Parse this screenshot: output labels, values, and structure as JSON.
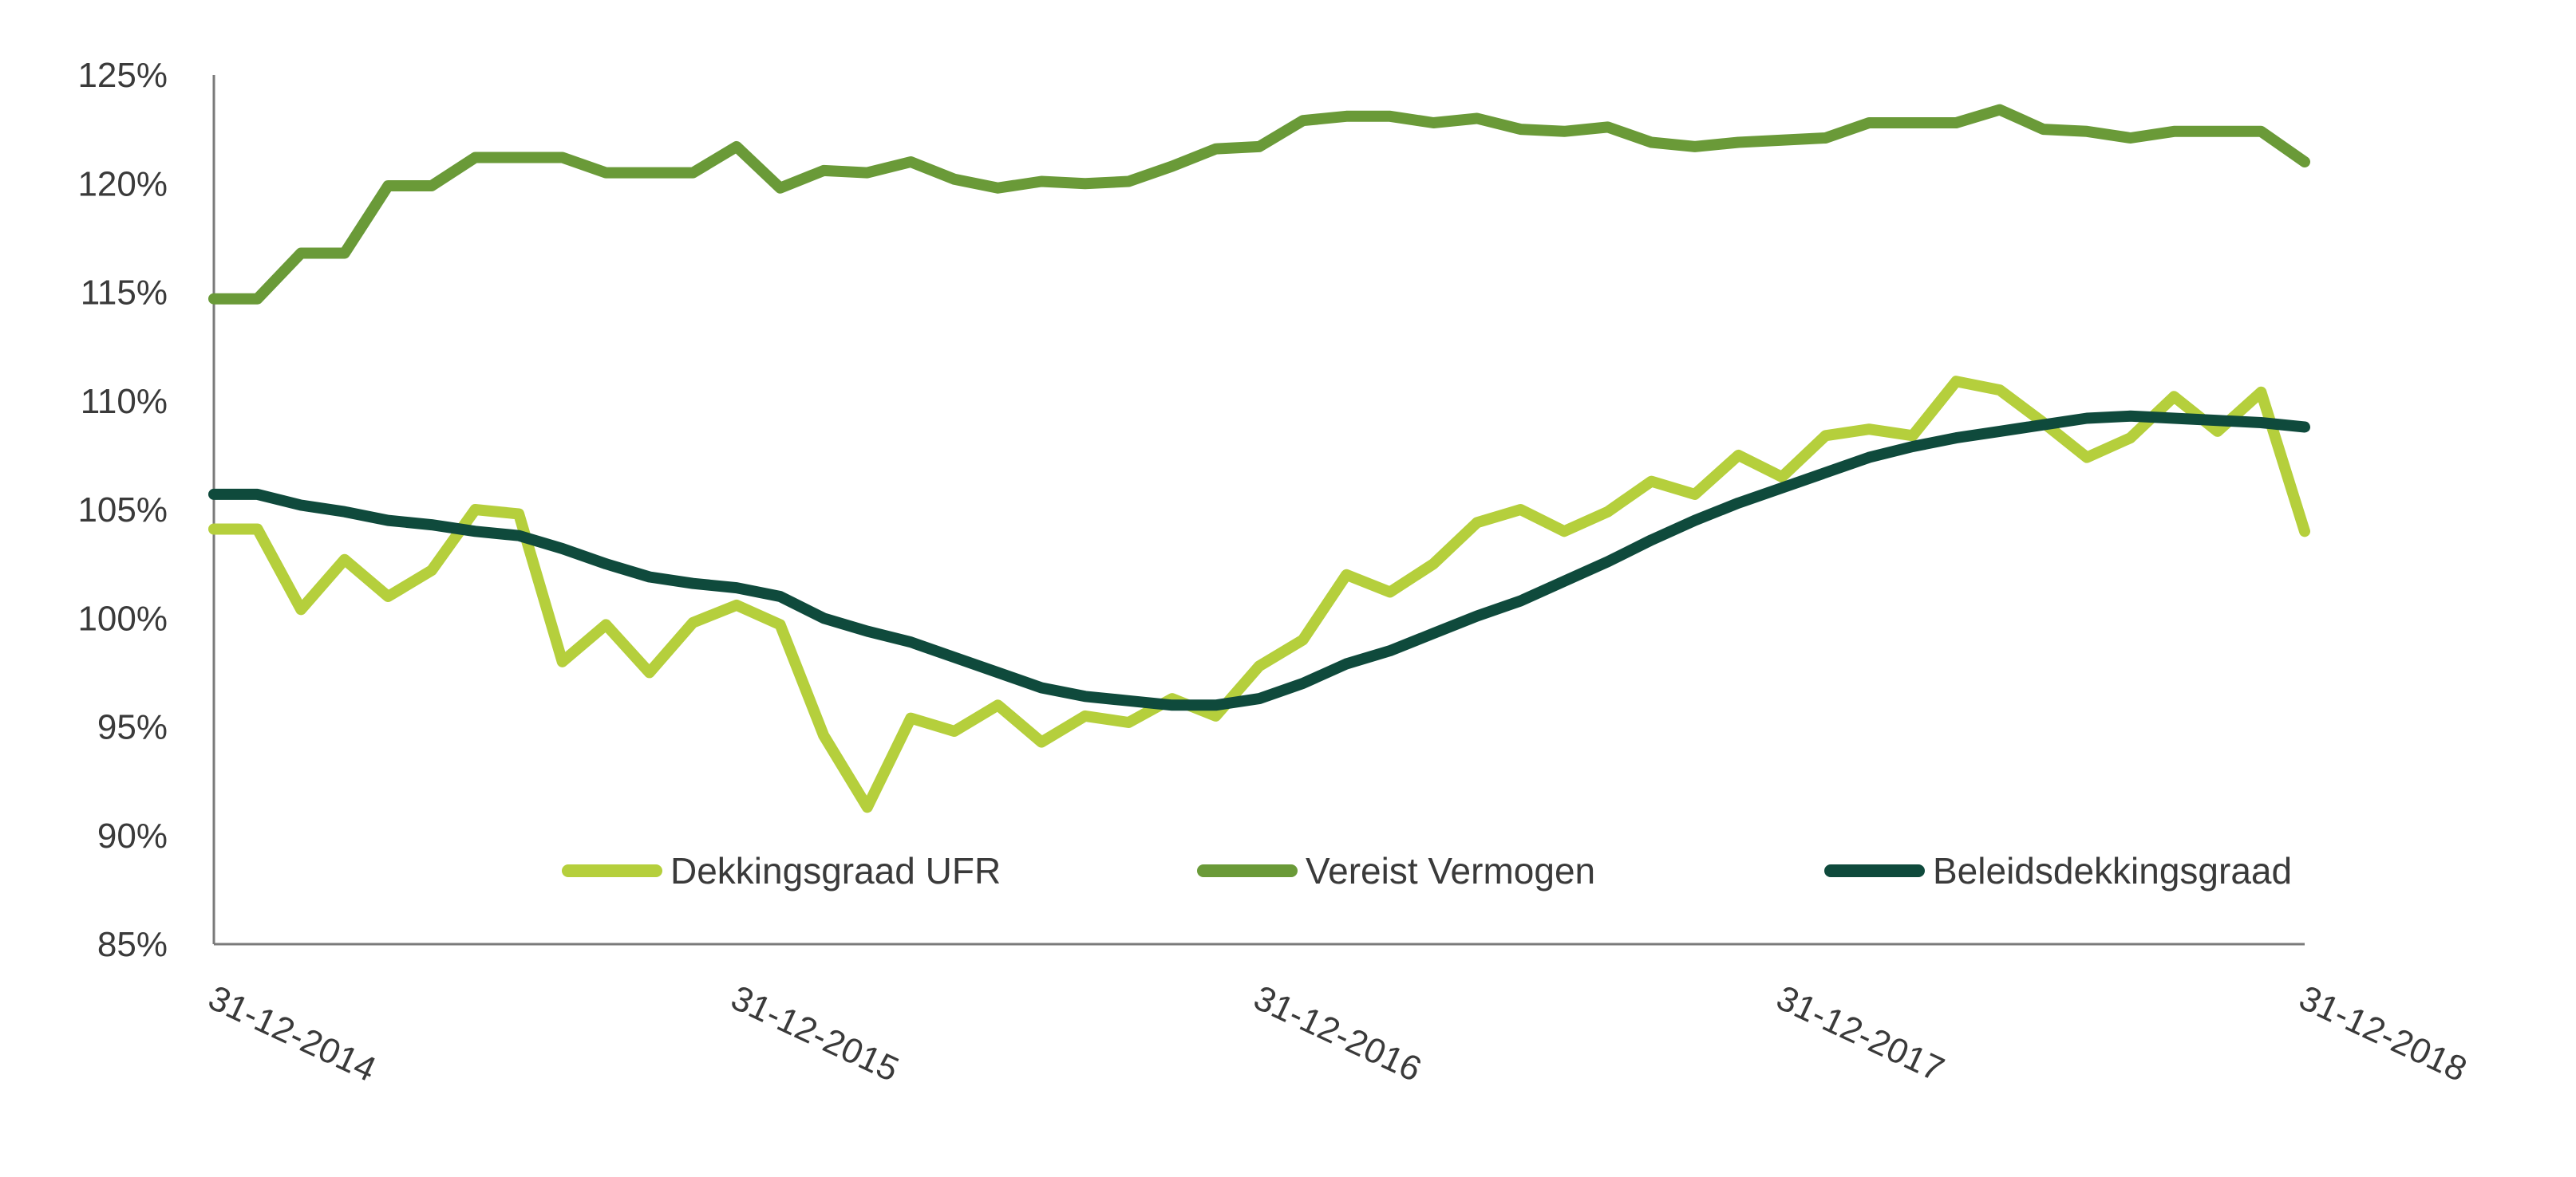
{
  "chart_data": {
    "type": "line",
    "title": "",
    "xlabel": "",
    "ylabel": "",
    "x": [
      "2015-01",
      "2015-02",
      "2015-03",
      "2015-04",
      "2015-05",
      "2015-06",
      "2015-07",
      "2015-08",
      "2015-09",
      "2015-10",
      "2015-11",
      "2015-12",
      "2016-01",
      "2016-02",
      "2016-03",
      "2016-04",
      "2016-05",
      "2016-06",
      "2016-07",
      "2016-08",
      "2016-09",
      "2016-10",
      "2016-11",
      "2016-12",
      "2017-01",
      "2017-02",
      "2017-03",
      "2017-04",
      "2017-05",
      "2017-06",
      "2017-07",
      "2017-08",
      "2017-09",
      "2017-10",
      "2017-11",
      "2017-12",
      "2018-01",
      "2018-02",
      "2018-03",
      "2018-04",
      "2018-05",
      "2018-06",
      "2018-07",
      "2018-08",
      "2018-09",
      "2018-10",
      "2018-11",
      "2018-12"
    ],
    "x_tick_labels": [
      "31-12-2014",
      "31-12-2015",
      "31-12-2016",
      "31-12-2017",
      "31-12-2018"
    ],
    "y_tick_labels": [
      "85%",
      "90%",
      "95%",
      "100%",
      "105%",
      "110%",
      "115%",
      "120%",
      "125%"
    ],
    "y_ticks": [
      85,
      90,
      95,
      100,
      105,
      110,
      115,
      120,
      125
    ],
    "ylim": [
      85,
      125
    ],
    "grid": false,
    "legend_position": "lower-center inside plot",
    "series": [
      {
        "name": "Dekkingsgraad UFR",
        "color": "#b5cf3c",
        "values": [
          104.1,
          100.4,
          102.7,
          101.0,
          102.2,
          105.0,
          104.8,
          98.0,
          99.7,
          97.5,
          99.8,
          100.6,
          99.7,
          94.6,
          91.3,
          95.4,
          94.8,
          96.0,
          94.3,
          95.5,
          95.2,
          96.3,
          95.5,
          97.8,
          99.0,
          102.0,
          101.2,
          102.5,
          104.4,
          105.0,
          104.0,
          104.9,
          106.3,
          105.7,
          107.5,
          106.5,
          108.4,
          108.7,
          108.4,
          110.9,
          110.5,
          109.0,
          107.4,
          108.3,
          110.2,
          108.6,
          110.4,
          104.0
        ]
      },
      {
        "name": "Vereist Vermogen",
        "color": "#6a9a38",
        "values": [
          114.7,
          116.8,
          116.8,
          119.9,
          119.9,
          121.2,
          121.2,
          121.2,
          120.5,
          120.5,
          120.5,
          121.7,
          119.8,
          120.6,
          120.5,
          121.0,
          120.2,
          119.8,
          120.1,
          120.0,
          120.1,
          120.8,
          121.6,
          121.7,
          122.9,
          123.1,
          123.1,
          122.8,
          123.0,
          122.5,
          122.4,
          122.6,
          121.9,
          121.7,
          121.9,
          122.0,
          122.1,
          122.8,
          122.8,
          122.8,
          123.4,
          122.5,
          122.4,
          122.1,
          122.4,
          122.4,
          122.4,
          121.0
        ]
      },
      {
        "name": "Beleidsdekkingsgraad",
        "color": "#0f4a3c",
        "values": [
          105.7,
          105.2,
          104.9,
          104.5,
          104.3,
          104.0,
          103.8,
          103.2,
          102.5,
          101.9,
          101.6,
          101.4,
          101.0,
          100.0,
          99.4,
          98.9,
          98.2,
          97.5,
          96.8,
          96.4,
          96.2,
          96.0,
          96.0,
          96.3,
          97.0,
          97.9,
          98.5,
          99.3,
          100.1,
          100.8,
          101.7,
          102.6,
          103.6,
          104.5,
          105.3,
          106.0,
          106.7,
          107.4,
          107.9,
          108.3,
          108.6,
          108.9,
          109.2,
          109.3,
          109.2,
          109.1,
          109.0,
          108.8
        ]
      }
    ]
  }
}
